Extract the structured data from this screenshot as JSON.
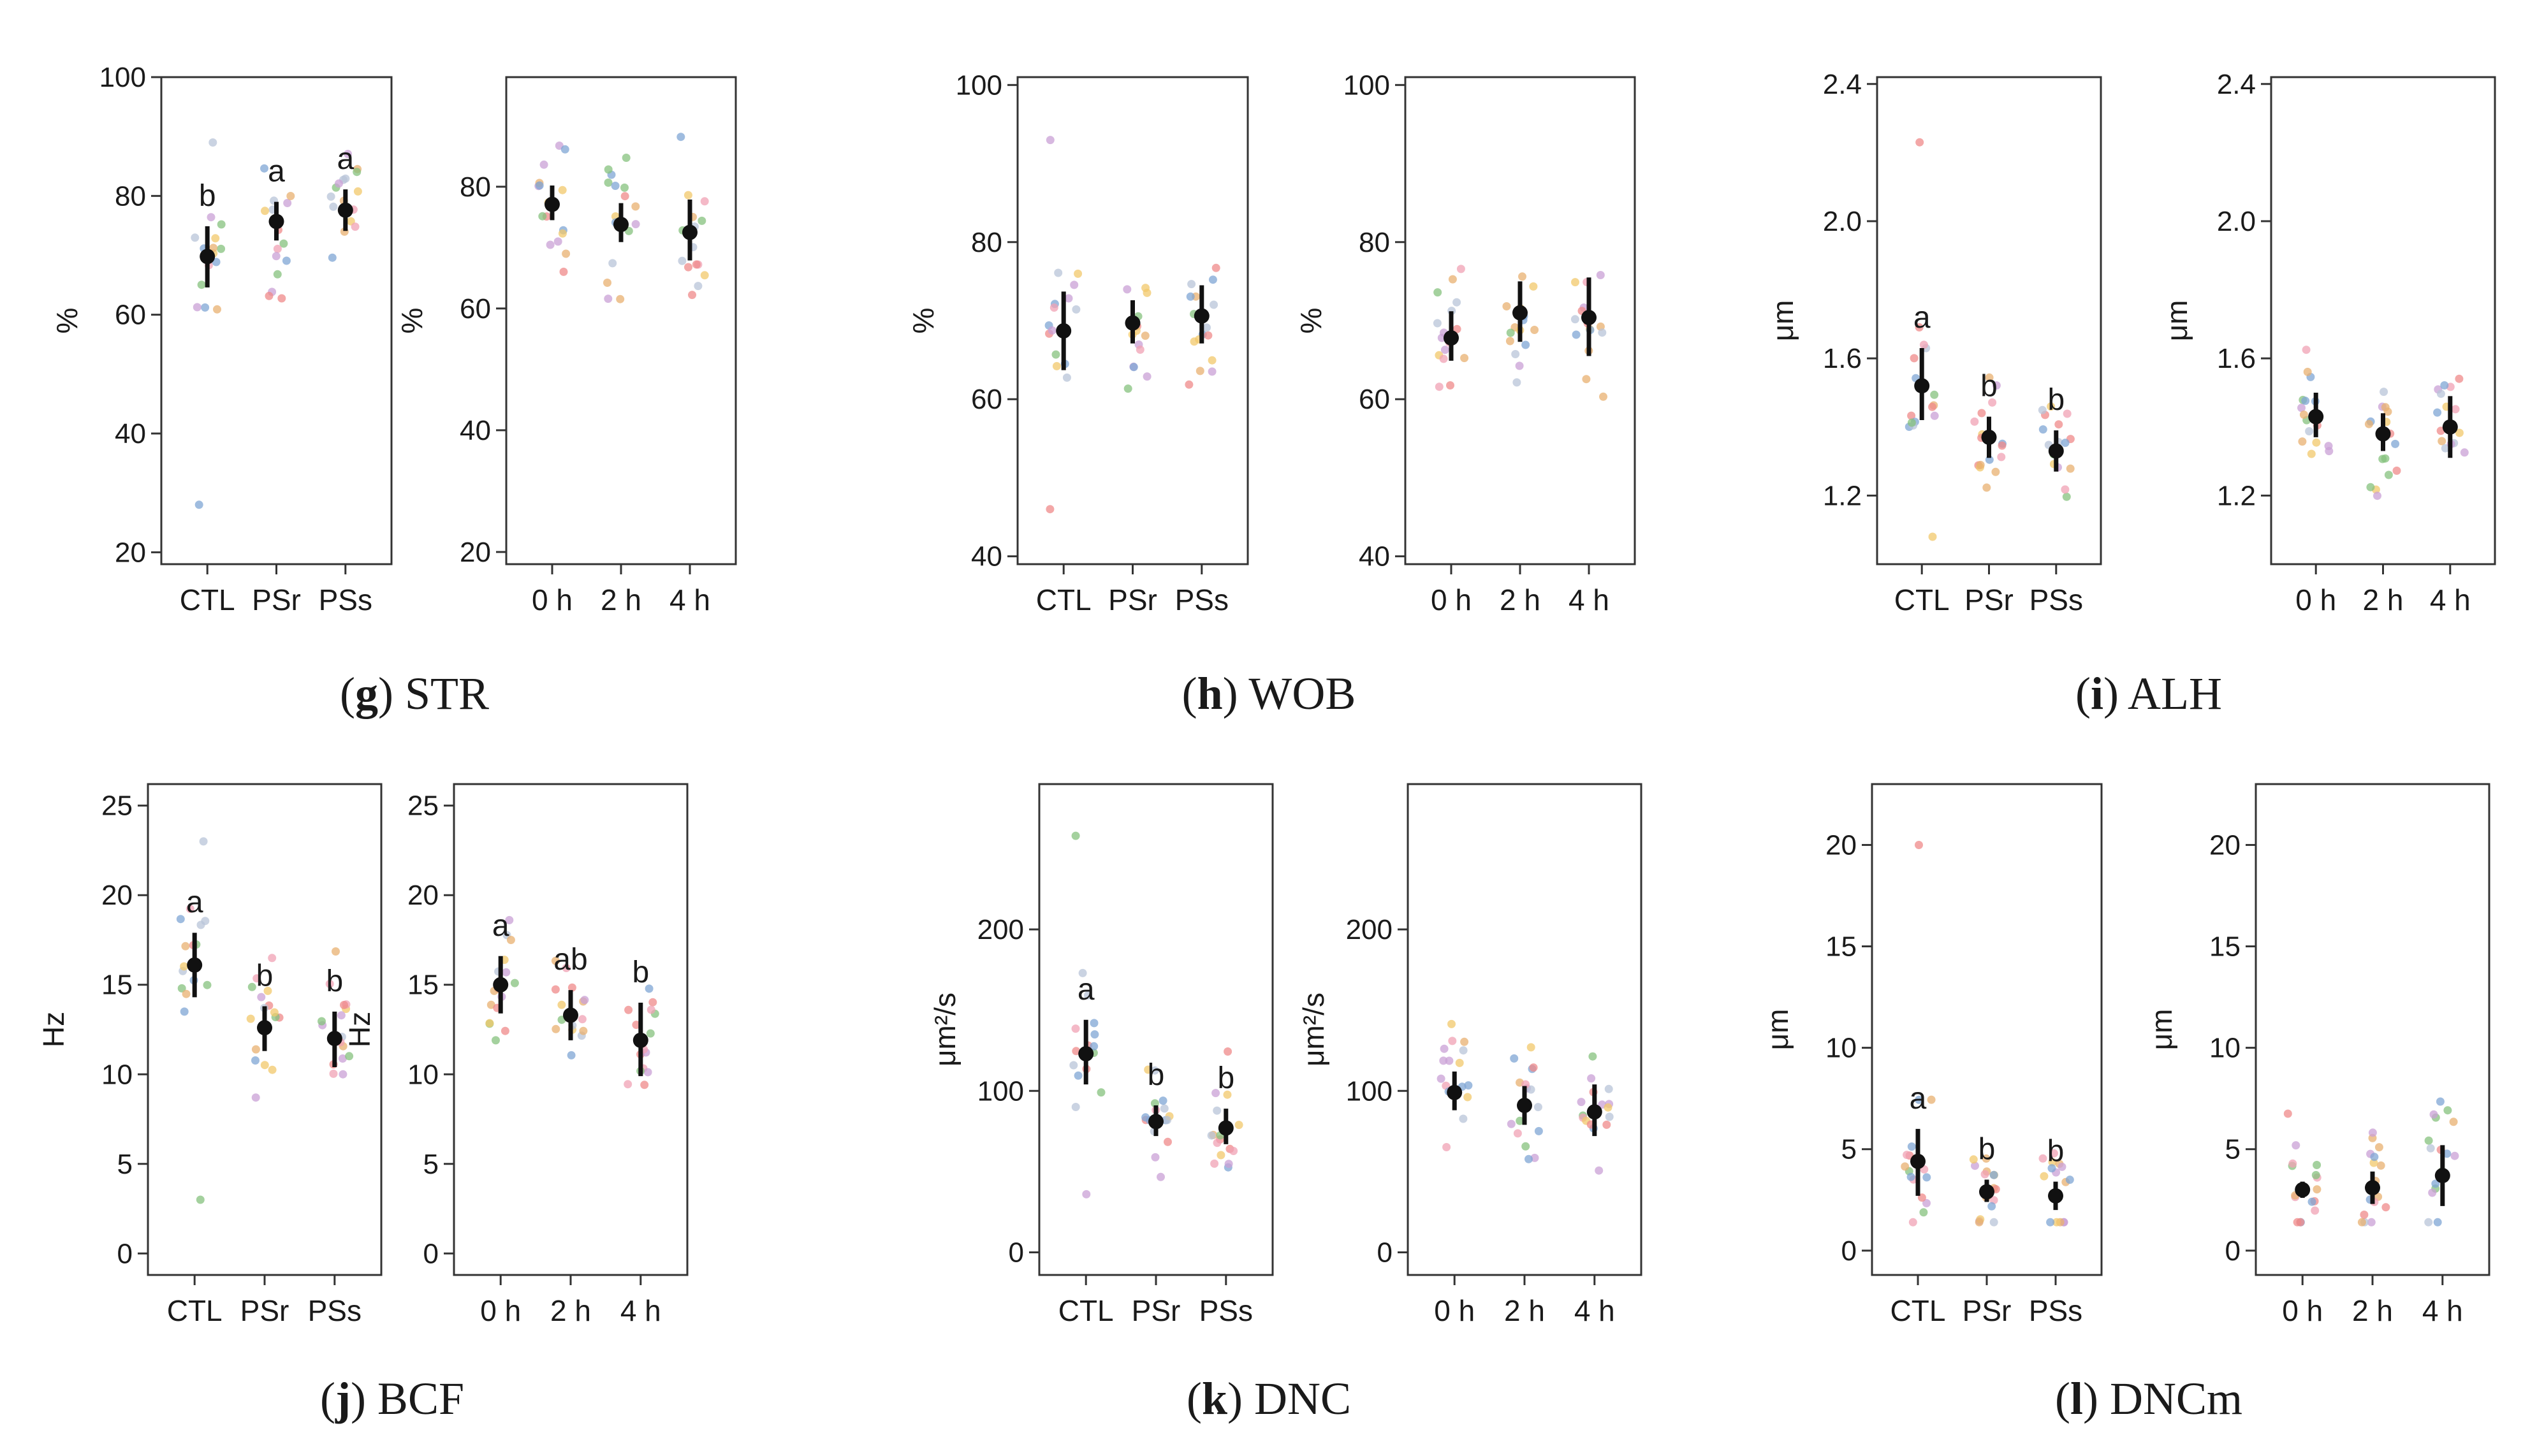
{
  "colors": {
    "mean": "#111111",
    "axis": "#333333",
    "jitter": [
      "#7fa6d4",
      "#ef8a8a",
      "#f2c86b",
      "#86c27d",
      "#c9a0d6",
      "#f0a2b4",
      "#b8c4d8",
      "#e8b070"
    ]
  },
  "chart_data": [
    {
      "id": "STR",
      "letter": "g",
      "name": "STR",
      "type": "scatter",
      "ylabel": "%",
      "left": {
        "ylim": [
          18,
          100
        ],
        "ticks": [
          20,
          40,
          60,
          80,
          100
        ],
        "tick_labels": [
          "20",
          "40",
          "60",
          "80",
          "100"
        ],
        "categories": [
          "CTL",
          "PSr",
          "PSs"
        ],
        "means": [
          69.8,
          75.7,
          77.6
        ],
        "ci": [
          [
            64.6,
            74.9
          ],
          [
            72.5,
            79.0
          ],
          [
            74.1,
            81.1
          ]
        ],
        "letters": [
          "b",
          "a",
          "a"
        ]
      },
      "right": {
        "ylim": [
          18,
          98
        ],
        "ticks": [
          20,
          40,
          60,
          80
        ],
        "tick_labels": [
          "20",
          "40",
          "60",
          "80"
        ],
        "categories": [
          "0 h",
          "2 h",
          "4 h"
        ],
        "means": [
          77.1,
          73.8,
          72.5
        ],
        "ci": [
          [
            74.5,
            80.2
          ],
          [
            70.9,
            77.3
          ],
          [
            67.9,
            77.9
          ]
        ],
        "letters": [
          "",
          "",
          ""
        ]
      },
      "spread": {
        "min": 28,
        "max": 89
      }
    },
    {
      "id": "WOB",
      "letter": "h",
      "name": "WOB",
      "type": "scatter",
      "ylabel": "%",
      "left": {
        "ylim": [
          39,
          101
        ],
        "ticks": [
          40,
          60,
          80,
          100
        ],
        "tick_labels": [
          "40",
          "60",
          "80",
          "100"
        ],
        "categories": [
          "CTL",
          "PSr",
          "PSs"
        ],
        "means": [
          68.7,
          69.7,
          70.6
        ],
        "ci": [
          [
            63.7,
            73.7
          ],
          [
            67.1,
            72.6
          ],
          [
            67.1,
            74.5
          ]
        ],
        "letters": [
          "",
          "",
          ""
        ]
      },
      "right": {
        "ylim": [
          39,
          101
        ],
        "ticks": [
          40,
          60,
          80,
          100
        ],
        "tick_labels": [
          "40",
          "60",
          "80",
          "100"
        ],
        "categories": [
          "0 h",
          "2 h",
          "4 h"
        ],
        "means": [
          67.8,
          71.0,
          70.4
        ],
        "ci": [
          [
            64.9,
            71.2
          ],
          [
            67.3,
            75.0
          ],
          [
            65.5,
            75.5
          ]
        ],
        "letters": [
          "",
          "",
          ""
        ]
      },
      "spread": {
        "min": 46,
        "max": 93
      }
    },
    {
      "id": "ALH",
      "letter": "i",
      "name": "ALH",
      "type": "scatter",
      "ylabel": "μm",
      "left": {
        "ylim": [
          1.0,
          2.42
        ],
        "ticks": [
          1.2,
          1.6,
          2.0,
          2.4
        ],
        "tick_labels": [
          "1.2",
          "1.6",
          "2.0",
          "2.4"
        ],
        "categories": [
          "CTL",
          "PSr",
          "PSs"
        ],
        "means": [
          1.52,
          1.37,
          1.33
        ],
        "ci": [
          [
            1.42,
            1.63
          ],
          [
            1.31,
            1.43
          ],
          [
            1.27,
            1.39
          ]
        ],
        "letters": [
          "a",
          "b",
          "b"
        ]
      },
      "right": {
        "ylim": [
          1.0,
          2.42
        ],
        "ticks": [
          1.2,
          1.6,
          2.0,
          2.4
        ],
        "tick_labels": [
          "1.2",
          "1.6",
          "2.0",
          "2.4"
        ],
        "categories": [
          "0 h",
          "2 h",
          "4 h"
        ],
        "means": [
          1.43,
          1.38,
          1.4
        ],
        "ci": [
          [
            1.37,
            1.5
          ],
          [
            1.33,
            1.44
          ],
          [
            1.31,
            1.49
          ]
        ],
        "letters": [
          "",
          "",
          ""
        ]
      },
      "spread": {
        "min": 1.08,
        "max": 2.23
      }
    },
    {
      "id": "BCF",
      "letter": "j",
      "name": "BCF",
      "type": "scatter",
      "ylabel": "Hz",
      "left": {
        "ylim": [
          -1.2,
          26.2
        ],
        "ticks": [
          0,
          5,
          10,
          15,
          20,
          25
        ],
        "tick_labels": [
          "0",
          "5",
          "10",
          "15",
          "20",
          "25"
        ],
        "categories": [
          "CTL",
          "PSr",
          "PSs"
        ],
        "means": [
          16.1,
          12.6,
          12.0
        ],
        "ci": [
          [
            14.3,
            17.9
          ],
          [
            11.3,
            13.8
          ],
          [
            10.4,
            13.5
          ]
        ],
        "letters": [
          "a",
          "b",
          "b"
        ]
      },
      "right": {
        "ylim": [
          -1.2,
          26.2
        ],
        "ticks": [
          0,
          5,
          10,
          15,
          20,
          25
        ],
        "tick_labels": [
          "0",
          "5",
          "10",
          "15",
          "20",
          "25"
        ],
        "categories": [
          "0 h",
          "2 h",
          "4 h"
        ],
        "means": [
          15.0,
          13.3,
          11.9
        ],
        "ci": [
          [
            13.4,
            16.6
          ],
          [
            11.9,
            14.7
          ],
          [
            9.9,
            14.0
          ]
        ],
        "letters": [
          "a",
          "ab",
          "b"
        ]
      },
      "spread": {
        "min": 3,
        "max": 23
      }
    },
    {
      "id": "DNC",
      "letter": "k",
      "name": "DNC",
      "type": "scatter",
      "ylabel": "μm²/s",
      "left": {
        "ylim": [
          -14,
          290
        ],
        "ticks": [
          0,
          100,
          200
        ],
        "tick_labels": [
          "0",
          "100",
          "200"
        ],
        "categories": [
          "CTL",
          "PSr",
          "PSs"
        ],
        "means": [
          123,
          81,
          77
        ],
        "ci": [
          [
            104,
            144
          ],
          [
            72,
            91
          ],
          [
            67,
            89
          ]
        ],
        "letters": [
          "a",
          "b",
          "b"
        ]
      },
      "right": {
        "ylim": [
          -14,
          290
        ],
        "ticks": [
          0,
          100,
          200
        ],
        "tick_labels": [
          "0",
          "100",
          "200"
        ],
        "categories": [
          "0 h",
          "2 h",
          "4 h"
        ],
        "means": [
          99,
          91,
          87
        ],
        "ci": [
          [
            88,
            112
          ],
          [
            79,
            103
          ],
          [
            72,
            104
          ]
        ],
        "letters": [
          "",
          "",
          ""
        ]
      },
      "spread": {
        "min": 36,
        "max": 258
      }
    },
    {
      "id": "DNCm",
      "letter": "l",
      "name": "DNCm",
      "type": "scatter",
      "ylabel": "μm",
      "left": {
        "ylim": [
          -1.2,
          23.0
        ],
        "ticks": [
          0,
          5,
          10,
          15,
          20
        ],
        "tick_labels": [
          "0",
          "5",
          "10",
          "15",
          "20"
        ],
        "categories": [
          "CTL",
          "PSr",
          "PSs"
        ],
        "means": [
          4.4,
          2.9,
          2.7
        ],
        "ci": [
          [
            2.7,
            6.0
          ],
          [
            2.4,
            3.5
          ],
          [
            2.0,
            3.4
          ]
        ],
        "letters": [
          "a",
          "b",
          "b"
        ]
      },
      "right": {
        "ylim": [
          -1.2,
          23.0
        ],
        "ticks": [
          0,
          5,
          10,
          15,
          20
        ],
        "tick_labels": [
          "0",
          "5",
          "10",
          "15",
          "20"
        ],
        "categories": [
          "0 h",
          "2 h",
          "4 h"
        ],
        "means": [
          3.0,
          3.1,
          3.7
        ],
        "ci": [
          [
            2.6,
            3.4
          ],
          [
            2.3,
            3.9
          ],
          [
            2.2,
            5.2
          ]
        ],
        "letters": [
          "",
          "",
          ""
        ]
      },
      "spread": {
        "min": 1.4,
        "max": 20
      }
    }
  ]
}
